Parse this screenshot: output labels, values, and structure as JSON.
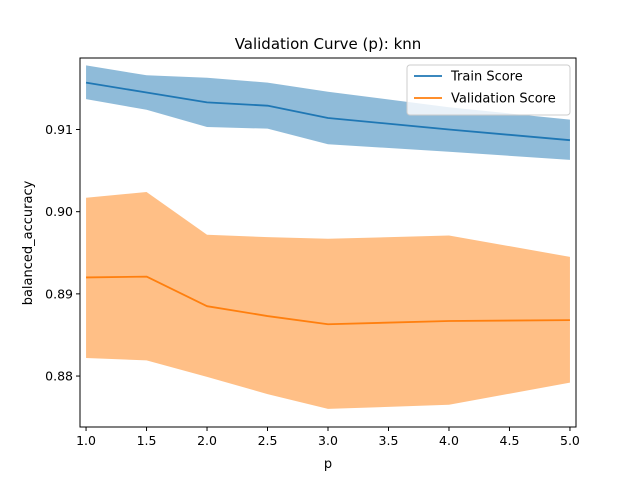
{
  "chart_data": {
    "type": "line",
    "title": "Validation Curve (p): knn",
    "xlabel": "p",
    "ylabel": "balanced_accuracy",
    "x": [
      1.0,
      1.5,
      2.0,
      2.5,
      3.0,
      4.0,
      5.0
    ],
    "xlim": [
      0.95,
      5.05
    ],
    "ylim": [
      0.8738,
      0.9187
    ],
    "xticks": [
      1.0,
      1.5,
      2.0,
      2.5,
      3.0,
      3.5,
      4.0,
      4.5,
      5.0
    ],
    "xtick_labels": [
      "1.0",
      "1.5",
      "2.0",
      "2.5",
      "3.0",
      "3.5",
      "4.0",
      "4.5",
      "5.0"
    ],
    "yticks": [
      0.88,
      0.89,
      0.9,
      0.91
    ],
    "ytick_labels": [
      "0.88",
      "0.89",
      "0.90",
      "0.91"
    ],
    "grid": false,
    "legend_position": "top-right",
    "series": [
      {
        "name": "Train Score",
        "color": "#1f77b4",
        "values": [
          0.9157,
          0.9145,
          0.9133,
          0.9129,
          0.9114,
          0.91,
          0.9087
        ],
        "lower": [
          0.9137,
          0.9124,
          0.9103,
          0.9101,
          0.9082,
          0.9073,
          0.9063
        ],
        "upper": [
          0.9178,
          0.9166,
          0.9163,
          0.9157,
          0.9146,
          0.9127,
          0.9112
        ]
      },
      {
        "name": "Validation Score",
        "color": "#ff7f0e",
        "values": [
          0.892,
          0.8921,
          0.8885,
          0.8873,
          0.8863,
          0.8867,
          0.8868
        ],
        "lower": [
          0.8822,
          0.8819,
          0.8799,
          0.8778,
          0.876,
          0.8765,
          0.8792
        ],
        "upper": [
          0.9017,
          0.9024,
          0.8972,
          0.8969,
          0.8967,
          0.8971,
          0.8945
        ]
      }
    ]
  }
}
